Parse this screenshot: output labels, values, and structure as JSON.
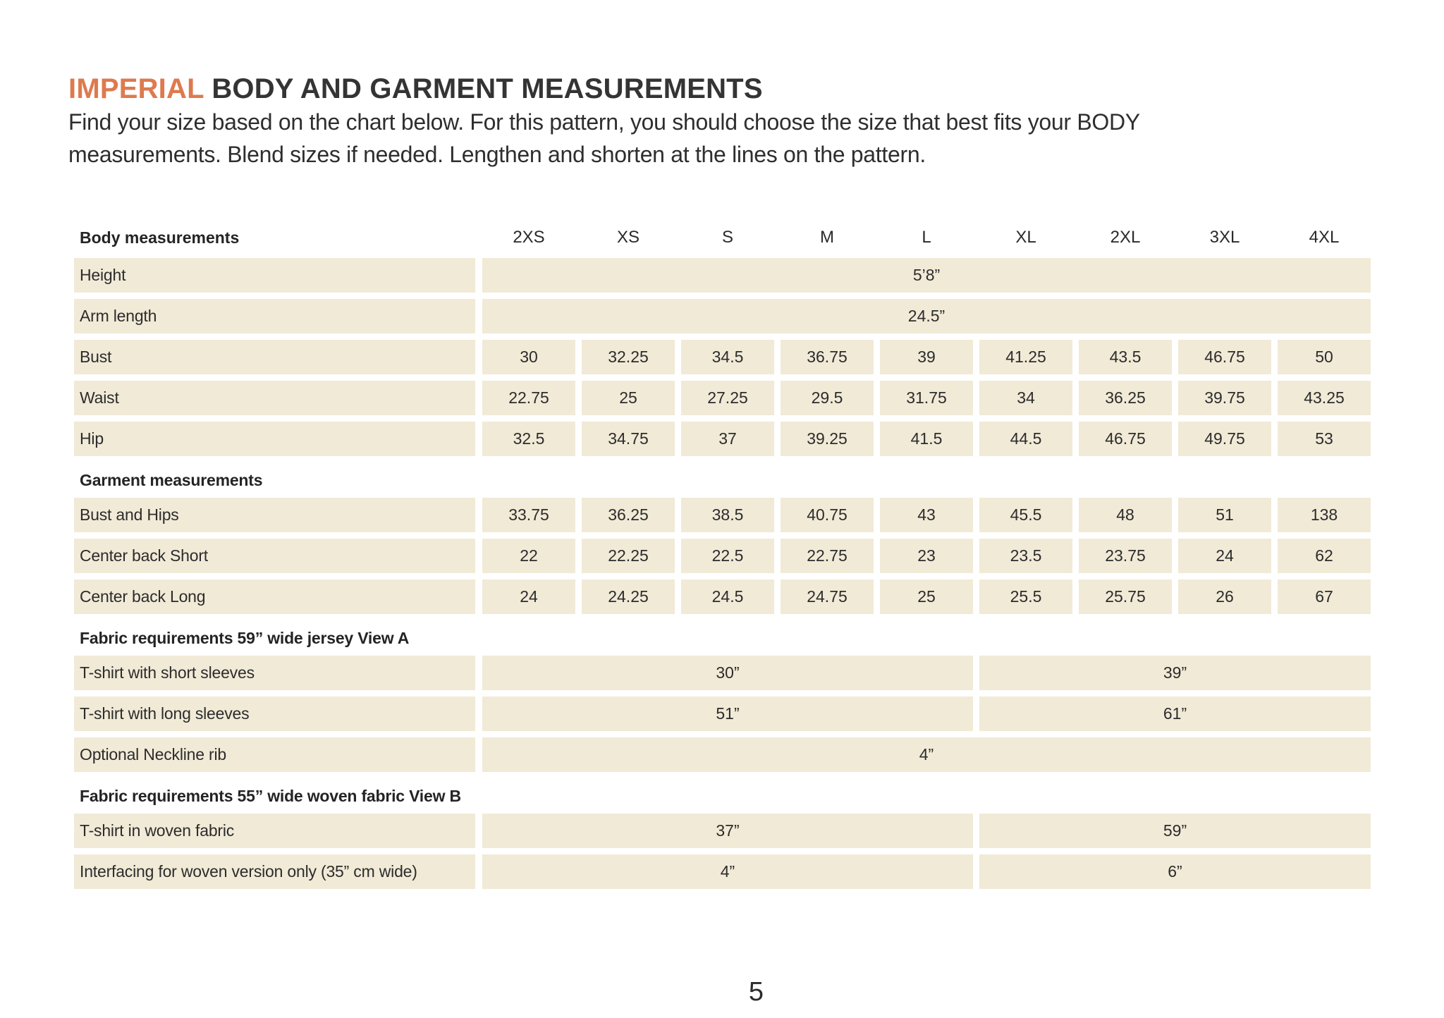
{
  "page": {
    "title_accent": "IMPERIAL",
    "title_rest": " BODY AND GARMENT MEASUREMENTS",
    "intro_line1": "Find your size based on the chart below. For this pattern, you should choose the size that best fits your BODY",
    "intro_line2": "measurements. Blend sizes if needed. Lengthen and shorten at the lines on the pattern.",
    "page_number": "5"
  },
  "colors": {
    "accent_orange": "#DD7A4E",
    "row_beige": "#F1EAD7",
    "text_dark": "#2B2B2B"
  },
  "table": {
    "corner_header": "Body measurements",
    "size_headers": [
      "2XS",
      "XS",
      "S",
      "M",
      "L",
      "XL",
      "2XL",
      "3XL",
      "4XL"
    ],
    "body_rows": {
      "height": {
        "label": "Height",
        "value": "5’8”"
      },
      "arm_length": {
        "label": "Arm length",
        "value": "24.5”"
      },
      "bust": {
        "label": "Bust",
        "values": [
          "30",
          "32.25",
          "34.5",
          "36.75",
          "39",
          "41.25",
          "43.5",
          "46.75",
          "50"
        ]
      },
      "waist": {
        "label": "Waist",
        "values": [
          "22.75",
          "25",
          "27.25",
          "29.5",
          "31.75",
          "34",
          "36.25",
          "39.75",
          "43.25"
        ]
      },
      "hip": {
        "label": "Hip",
        "values": [
          "32.5",
          "34.75",
          "37",
          "39.25",
          "41.5",
          "44.5",
          "46.75",
          "49.75",
          "53"
        ]
      }
    },
    "garment": {
      "header": "Garment measurements",
      "bust_and_hips": {
        "label": "Bust and Hips",
        "values": [
          "33.75",
          "36.25",
          "38.5",
          "40.75",
          "43",
          "45.5",
          "48",
          "51",
          "138"
        ]
      },
      "center_back_short": {
        "label": "Center back Short",
        "values": [
          "22",
          "22.25",
          "22.5",
          "22.75",
          "23",
          "23.5",
          "23.75",
          "24",
          "62"
        ]
      },
      "center_back_long": {
        "label": "Center back Long",
        "values": [
          "24",
          "24.25",
          "24.5",
          "24.75",
          "25",
          "25.5",
          "25.75",
          "26",
          "67"
        ]
      }
    },
    "fabric_a": {
      "header": "Fabric requirements 59” wide jersey View A",
      "short_sleeves": {
        "label": "T-shirt with short sleeves",
        "left": "30”",
        "right": "39”"
      },
      "long_sleeves": {
        "label": "T-shirt with long sleeves",
        "left": "51”",
        "right": "61”"
      },
      "neckline_rib": {
        "label": "Optional Neckline rib",
        "value": "4”"
      }
    },
    "fabric_b": {
      "header": "Fabric requirements 55”  wide woven fabric View B",
      "woven": {
        "label": "T-shirt in woven fabric",
        "left": "37”",
        "right": "59”"
      },
      "interfacing": {
        "label": "Interfacing for woven version only (35” cm wide)",
        "left": "4”",
        "right": "6”"
      }
    }
  }
}
